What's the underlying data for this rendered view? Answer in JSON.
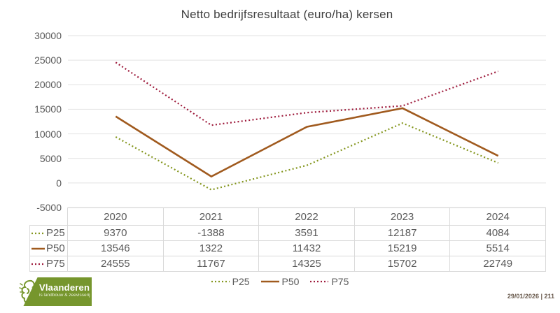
{
  "title": "Netto bedrijfsresultaat (euro/ha) kersen",
  "chart_data": {
    "type": "line",
    "title": "Netto bedrijfsresultaat (euro/ha) kersen",
    "categories": [
      "2020",
      "2021",
      "2022",
      "2023",
      "2024"
    ],
    "series": [
      {
        "name": "P25",
        "style": "dotted",
        "color": "#84961e",
        "values": [
          9370,
          -1388,
          3591,
          12187,
          4084
        ]
      },
      {
        "name": "P50",
        "style": "solid",
        "color": "#a05a1e",
        "values": [
          13546,
          1322,
          11432,
          15219,
          5514
        ]
      },
      {
        "name": "P75",
        "style": "dotted",
        "color": "#9e1b3c",
        "values": [
          24555,
          11767,
          14325,
          15702,
          22749
        ]
      }
    ],
    "ylim": [
      -5000,
      30000
    ],
    "yticks": [
      30000,
      25000,
      20000,
      15000,
      10000,
      5000,
      0,
      -5000
    ],
    "xlabel": "",
    "ylabel": "",
    "grid": true,
    "legend_position": "bottom",
    "data_table_shown": true
  },
  "footer": {
    "logo_title": "Vlaanderen",
    "logo_subtitle": "is landbouw & zeevisserij",
    "date_note": "29/01/2026 | 211"
  },
  "colors": {
    "background": "#ffffff",
    "title_text": "#3f3f3f",
    "axis_text": "#595959",
    "gridline": "#e2e2e2",
    "table_border": "#d9d9d9",
    "logo_green": "#76962d",
    "p25_line": "#84961e",
    "p50_line": "#a05a1e",
    "p75_line": "#9e1b3c"
  }
}
